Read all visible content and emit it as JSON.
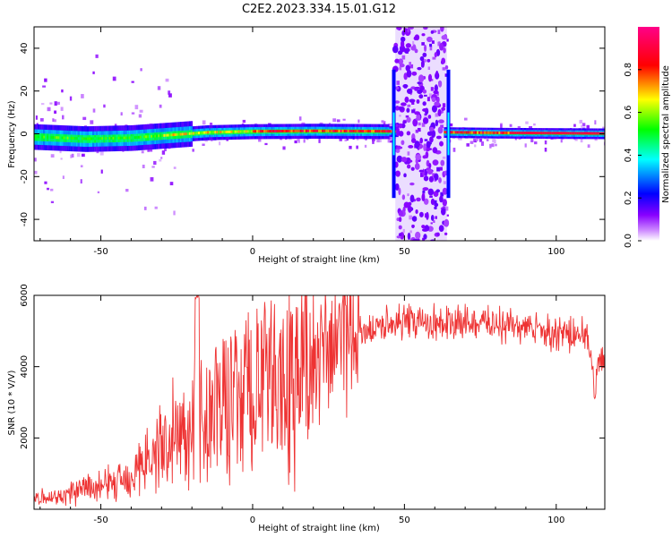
{
  "title": "C2E2.2023.334.15.01.G12",
  "chart_data": [
    {
      "type": "heatmap",
      "xlabel": "Height of straight line (km)",
      "ylabel": "Frequency (Hz)",
      "xlim": [
        -72,
        116
      ],
      "ylim": [
        -50,
        50
      ],
      "xticks": [
        -50,
        0,
        50,
        100
      ],
      "yticks": [
        -40,
        -20,
        0,
        20,
        40
      ],
      "colorbar": {
        "label": "Normalized spectral amplitude",
        "range": [
          0,
          1
        ],
        "ticks": [
          "0.0",
          "0.2",
          "0.4",
          "0.6",
          "0.8"
        ],
        "colormap": [
          "#ffffff",
          "#9933ff",
          "#0000ff",
          "#00ffff",
          "#00ff00",
          "#ffff00",
          "#ff0000",
          "#ff00a0"
        ]
      },
      "carrier_frequency_hz": [
        {
          "x": -72,
          "y": -1.5
        },
        {
          "x": -55,
          "y": -2.5
        },
        {
          "x": -40,
          "y": -2
        },
        {
          "x": -30,
          "y": -1
        },
        {
          "x": -15,
          "y": 0.5
        },
        {
          "x": 0,
          "y": 1
        },
        {
          "x": 20,
          "y": 1.2
        },
        {
          "x": 47,
          "y": 1
        },
        {
          "x": 67,
          "y": 0.5
        },
        {
          "x": 80,
          "y": 0.3
        },
        {
          "x": 116,
          "y": 0
        }
      ],
      "disturbed_regions_km": [
        [
          47,
          64
        ]
      ]
    },
    {
      "type": "line",
      "xlabel": "Height of straight line (km)",
      "ylabel": "SNR (10 * V/V)",
      "xlim": [
        -72,
        116
      ],
      "ylim": [
        0,
        6000
      ],
      "xticks": [
        -50,
        0,
        50,
        100
      ],
      "yticks": [
        2000,
        4000,
        6000
      ],
      "series": [
        {
          "color": "#ee3333",
          "x": [
            -72,
            -65,
            -60,
            -55,
            -50,
            -45,
            -40,
            -35,
            -30,
            -25,
            -20,
            -18,
            -15,
            -10,
            -5,
            0,
            5,
            10,
            15,
            20,
            25,
            30,
            35,
            40,
            45,
            50,
            55,
            60,
            65,
            70,
            75,
            80,
            85,
            90,
            95,
            100,
            105,
            110,
            113,
            114,
            116
          ],
          "y": [
            300,
            350,
            450,
            550,
            650,
            800,
            1000,
            1300,
            1700,
            2100,
            2600,
            3000,
            2300,
            3000,
            3200,
            3400,
            3500,
            3600,
            3800,
            4300,
            4600,
            4800,
            5000,
            5100,
            5200,
            5250,
            5250,
            5250,
            5200,
            5250,
            5250,
            5200,
            5150,
            5100,
            5000,
            4950,
            4900,
            4850,
            3500,
            4100,
            4300
          ]
        }
      ]
    }
  ]
}
